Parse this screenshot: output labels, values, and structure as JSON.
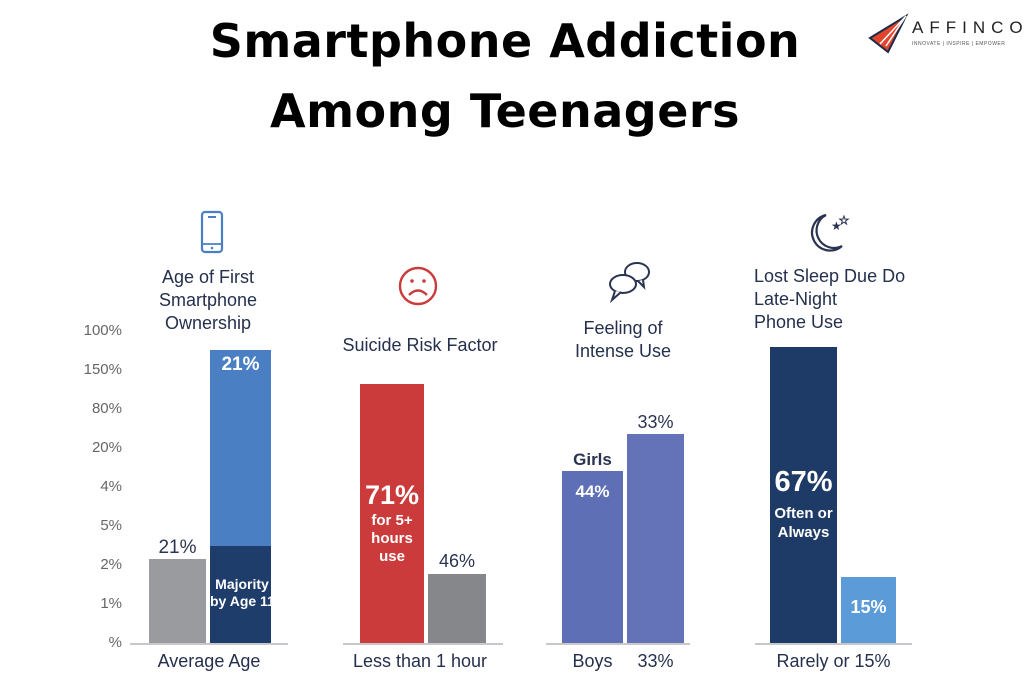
{
  "title_line1": "Smartphone Addiction",
  "title_line2": "Among Teenagers",
  "logo": {
    "name": "AFFINCO",
    "tagline": "INNOVATE | INSPIRE | EMPOWER"
  },
  "chart_data": {
    "type": "bar",
    "y_tick_labels": [
      "%",
      "1%",
      "2%",
      "5%",
      "4%",
      "20%",
      "80%",
      "150%",
      "100%"
    ],
    "grid": false,
    "panels": [
      {
        "title": "Age of First\nSmartphone\nOwnership",
        "icon": "smartphone-icon",
        "x_label": "Average Age",
        "bars": [
          {
            "label": "21%",
            "height_pct_of_axis": 27,
            "color": "#9a9b9e"
          },
          {
            "label": "21%",
            "height_pct_of_axis": 94,
            "color": "#4a80c3"
          },
          {
            "label": "Majority\nby Age 11",
            "height_pct_of_axis": 31,
            "color": "#1f3d6b"
          }
        ]
      },
      {
        "title": "Suicide Risk Factor",
        "icon": "sad-face-icon",
        "x_label": "Less than 1 hour",
        "bars": [
          {
            "label": "71%",
            "sublabel": "for 5+\nhours\nuse",
            "height_pct_of_axis": 83,
            "color": "#cc3b3b"
          },
          {
            "label": "46%",
            "height_pct_of_axis": 22,
            "color": "#85878b"
          }
        ]
      },
      {
        "title": "Feeling of\nIntense Use",
        "icon": "chat-bubbles-icon",
        "x_label_left": "Boys",
        "x_label_right": "33%",
        "bars": [
          {
            "label": "44%",
            "top_label": "Girls",
            "height_pct_of_axis": 55,
            "color": "#5f6fb6"
          },
          {
            "label": "33%",
            "height_pct_of_axis": 67,
            "color": "#6473b8"
          }
        ]
      },
      {
        "title": "Lost Sleep Due Do\n  Late-Night\nPhone Use",
        "icon": "moon-stars-icon",
        "x_label": "Rarely or 15%",
        "bars": [
          {
            "label": "67%",
            "sublabel": "Often or\nAlways",
            "height_pct_of_axis": 95,
            "color": "#1e3a66"
          },
          {
            "label": "15%",
            "height_pct_of_axis": 21,
            "color": "#5b9bd8"
          }
        ]
      }
    ]
  }
}
